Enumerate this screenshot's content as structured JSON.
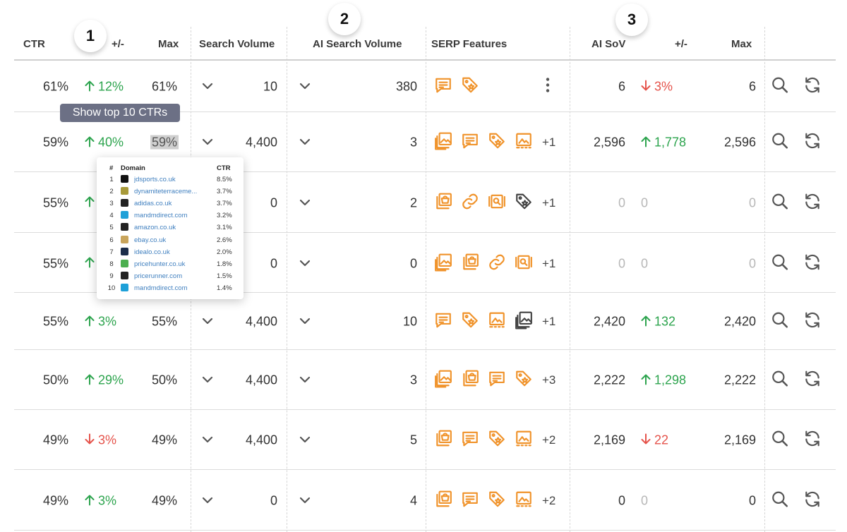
{
  "headers": {
    "ctr": "CTR",
    "ctr_change": "+/-",
    "ctr_max": "Max",
    "search_volume": "Search Volume",
    "ai_search_volume": "AI Search Volume",
    "serp_features": "SERP Features",
    "ai_sov": "AI SoV",
    "ai_sov_change": "+/-",
    "ai_sov_max": "Max"
  },
  "badges": [
    "1",
    "2",
    "3"
  ],
  "tooltip": "Show top 10 CTRs",
  "popup": {
    "header_num": "#",
    "header_domain": "Domain",
    "header_ctr": "CTR",
    "rows": [
      {
        "num": "1",
        "domain": "jdsports.co.uk",
        "ctr": "8.5%",
        "color": "#111111"
      },
      {
        "num": "2",
        "domain": "dynamiteterraceme...",
        "ctr": "3.7%",
        "color": "#a89a3a"
      },
      {
        "num": "3",
        "domain": "adidas.co.uk",
        "ctr": "3.7%",
        "color": "#222222"
      },
      {
        "num": "4",
        "domain": "mandmdirect.com",
        "ctr": "3.2%",
        "color": "#1ea0d8"
      },
      {
        "num": "5",
        "domain": "amazon.co.uk",
        "ctr": "3.1%",
        "color": "#222222"
      },
      {
        "num": "6",
        "domain": "ebay.co.uk",
        "ctr": "2.6%",
        "color": "#c9a55c"
      },
      {
        "num": "7",
        "domain": "idealo.co.uk",
        "ctr": "2.0%",
        "color": "#1c2d4a"
      },
      {
        "num": "8",
        "domain": "pricehunter.co.uk",
        "ctr": "1.8%",
        "color": "#4caf50"
      },
      {
        "num": "9",
        "domain": "pricerunner.com",
        "ctr": "1.5%",
        "color": "#222222"
      },
      {
        "num": "10",
        "domain": "mandmdirect.com",
        "ctr": "1.4%",
        "color": "#1ea0d8"
      }
    ]
  },
  "rows": [
    {
      "ctr": "61%",
      "change": "12%",
      "dir": "up",
      "max": "61%",
      "sv": "10",
      "aisv": "380",
      "features": [
        "message-icon",
        "tag-icon"
      ],
      "extra": "",
      "kebab": true,
      "sov": "6",
      "sov_dim": false,
      "sov_change": "3%",
      "sov_dir": "down",
      "sov_max": "6",
      "sov_max_dim": false
    },
    {
      "ctr": "59%",
      "change": "40%",
      "dir": "up",
      "max": "59%",
      "sv": "4,400",
      "aisv": "3",
      "features": [
        "images-icon",
        "message-icon",
        "tag-icon",
        "image-icon"
      ],
      "extra": "+1",
      "kebab": false,
      "sov": "2,596",
      "sov_dim": false,
      "sov_change": "1,778",
      "sov_dir": "up",
      "sov_max": "2,596",
      "sov_max_dim": false
    },
    {
      "ctr": "55%",
      "change": "",
      "dir": "up",
      "max": "",
      "sv": "0",
      "aisv": "2",
      "features": [
        "shopping-icon",
        "link-icon",
        "video-icon",
        "tag-icon-grey"
      ],
      "extra": "+1",
      "kebab": false,
      "sov": "0",
      "sov_dim": true,
      "sov_change": "0",
      "sov_dir": "dim",
      "sov_max": "0",
      "sov_max_dim": true
    },
    {
      "ctr": "55%",
      "change": "",
      "dir": "up",
      "max": "",
      "sv": "0",
      "aisv": "0",
      "features": [
        "images-icon",
        "shopping-icon",
        "link-icon",
        "video-icon"
      ],
      "extra": "+1",
      "kebab": false,
      "sov": "0",
      "sov_dim": true,
      "sov_change": "0",
      "sov_dir": "dim",
      "sov_max": "0",
      "sov_max_dim": true
    },
    {
      "ctr": "55%",
      "change": "3%",
      "dir": "up",
      "max": "55%",
      "sv": "4,400",
      "aisv": "10",
      "features": [
        "message-icon",
        "tag-icon",
        "image-icon",
        "images-icon-grey"
      ],
      "extra": "+1",
      "kebab": false,
      "sov": "2,420",
      "sov_dim": false,
      "sov_change": "132",
      "sov_dir": "up",
      "sov_max": "2,420",
      "sov_max_dim": false
    },
    {
      "ctr": "50%",
      "change": "29%",
      "dir": "up",
      "max": "50%",
      "sv": "4,400",
      "aisv": "3",
      "features": [
        "images-icon",
        "shopping-icon",
        "message-icon",
        "tag-icon"
      ],
      "extra": "+3",
      "kebab": false,
      "sov": "2,222",
      "sov_dim": false,
      "sov_change": "1,298",
      "sov_dir": "up",
      "sov_max": "2,222",
      "sov_max_dim": false
    },
    {
      "ctr": "49%",
      "change": "3%",
      "dir": "down",
      "max": "49%",
      "sv": "4,400",
      "aisv": "5",
      "features": [
        "shopping-icon",
        "message-icon",
        "tag-icon",
        "image-icon"
      ],
      "extra": "+2",
      "kebab": false,
      "sov": "2,169",
      "sov_dim": false,
      "sov_change": "22",
      "sov_dir": "down",
      "sov_max": "2,169",
      "sov_max_dim": false
    },
    {
      "ctr": "49%",
      "change": "3%",
      "dir": "up",
      "max": "49%",
      "sv": "0",
      "aisv": "4",
      "features": [
        "shopping-icon",
        "message-icon",
        "tag-icon",
        "image-icon"
      ],
      "extra": "+2",
      "kebab": false,
      "sov": "0",
      "sov_dim": false,
      "sov_change": "0",
      "sov_dir": "dim",
      "sov_max": "0",
      "sov_max_dim": false
    }
  ],
  "colors": {
    "accent": "#f0932b",
    "up": "#2da44e",
    "down": "#e5534b",
    "tooltip": "#6c7085"
  }
}
